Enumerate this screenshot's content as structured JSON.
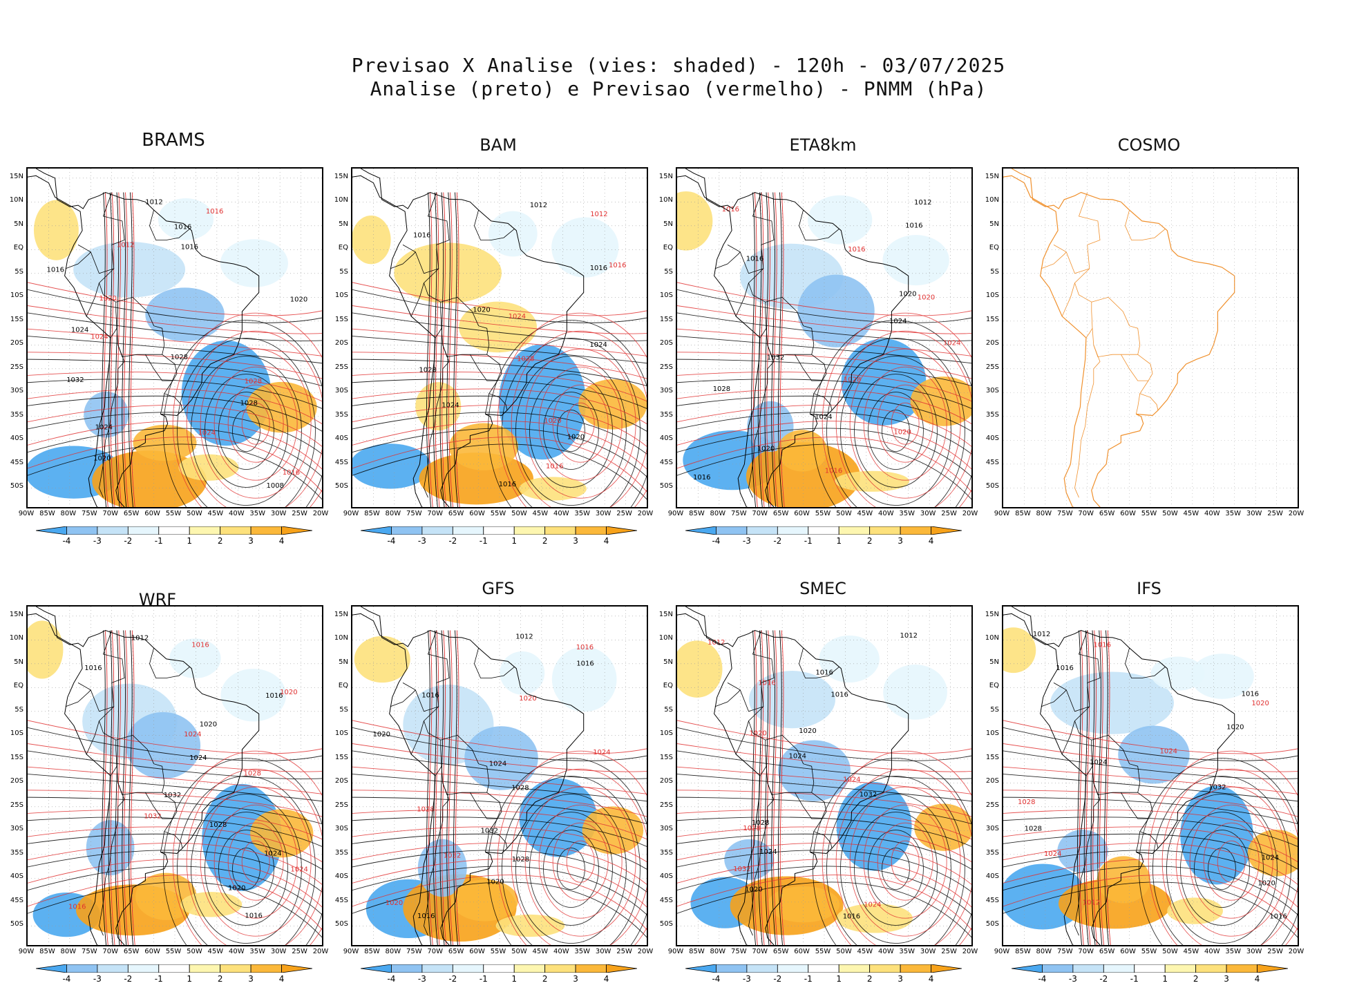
{
  "header": {
    "title_line1": "Previsao X Analise (vies: shaded) - 120h - 03/07/2025",
    "title_line2": "Analise (preto) e Previsao (vermelho) - PNMM (hPa)"
  },
  "axes": {
    "lat_labels": [
      "15N",
      "10N",
      "5N",
      "EQ",
      "5S",
      "10S",
      "15S",
      "20S",
      "25S",
      "30S",
      "35S",
      "40S",
      "45S",
      "50S"
    ],
    "lon_labels": [
      "90W",
      "85W",
      "80W",
      "75W",
      "70W",
      "65W",
      "60W",
      "55W",
      "50W",
      "45W",
      "40W",
      "35W",
      "30W",
      "25W",
      "20W"
    ]
  },
  "colorbar": {
    "labels": [
      "-4",
      "-3",
      "-2",
      "-1",
      "1",
      "2",
      "3",
      "4"
    ],
    "colors": [
      "#4aa8f0",
      "#8fc3f2",
      "#c5e3f7",
      "#e6f6fd",
      "#ffffff",
      "#fdf6b0",
      "#fde17c",
      "#fbb83a",
      "#f7a21a"
    ]
  },
  "colors": {
    "analysis_contour": "#000000",
    "forecast_contour": "#e03030",
    "cosmo_coast": "#f0902c",
    "grid": "#999999"
  },
  "panels": [
    {
      "name": "BRAMS",
      "col": 0,
      "row": 0,
      "empty": false,
      "labels_black": [
        "1012",
        "1016",
        "1016",
        "1016",
        "1020",
        "1024",
        "1028",
        "1032",
        "1028",
        "1024",
        "1020",
        "1008"
      ],
      "labels_red": [
        "1016",
        "1012",
        "1020",
        "1024",
        "1028",
        "1024",
        "1016"
      ]
    },
    {
      "name": "BAM",
      "col": 1,
      "row": 0,
      "empty": false,
      "labels_black": [
        "1012",
        "1016",
        "1016",
        "1020",
        "1024",
        "1028",
        "1024",
        "1020",
        "1016"
      ],
      "labels_red": [
        "1012",
        "1016",
        "1024",
        "1028",
        "1020",
        "1016"
      ]
    },
    {
      "name": "ETA8km",
      "col": 2,
      "row": 0,
      "empty": false,
      "labels_black": [
        "1012",
        "1016",
        "1016",
        "1020",
        "1024",
        "1032",
        "1028",
        "1024",
        "1020",
        "1016"
      ],
      "labels_red": [
        "1016",
        "1016",
        "1020",
        "1024",
        "1028",
        "1020",
        "1016"
      ]
    },
    {
      "name": "COSMO",
      "col": 3,
      "row": 0,
      "empty": true,
      "labels_black": [],
      "labels_red": []
    },
    {
      "name": "WRF",
      "col": 0,
      "row": 1,
      "empty": false,
      "labels_black": [
        "1012",
        "1016",
        "1016",
        "1020",
        "1024",
        "1032",
        "1028",
        "1024",
        "1020",
        "1016"
      ],
      "labels_red": [
        "1016",
        "1020",
        "1024",
        "1028",
        "1032",
        "1024",
        "1016"
      ]
    },
    {
      "name": "GFS",
      "col": 1,
      "row": 1,
      "empty": false,
      "labels_black": [
        "1012",
        "1016",
        "1016",
        "1020",
        "1024",
        "1028",
        "1032",
        "1028",
        "1020",
        "1016"
      ],
      "labels_red": [
        "1016",
        "1020",
        "1024",
        "1028",
        "1032",
        "1020"
      ]
    },
    {
      "name": "SMEC",
      "col": 2,
      "row": 1,
      "empty": false,
      "labels_black": [
        "1012",
        "1016",
        "1016",
        "1020",
        "1024",
        "1032",
        "1028",
        "1024",
        "1020",
        "1016"
      ],
      "labels_red": [
        "1012",
        "1016",
        "1020",
        "1024",
        "1028",
        "1032",
        "1024"
      ]
    },
    {
      "name": "IFS",
      "col": 3,
      "row": 1,
      "empty": false,
      "labels_black": [
        "1012",
        "1016",
        "1016",
        "1020",
        "1024",
        "1032",
        "1028",
        "1024",
        "1020",
        "1016"
      ],
      "labels_red": [
        "1016",
        "1020",
        "1024",
        "1028",
        "1024",
        "1012"
      ]
    }
  ]
}
